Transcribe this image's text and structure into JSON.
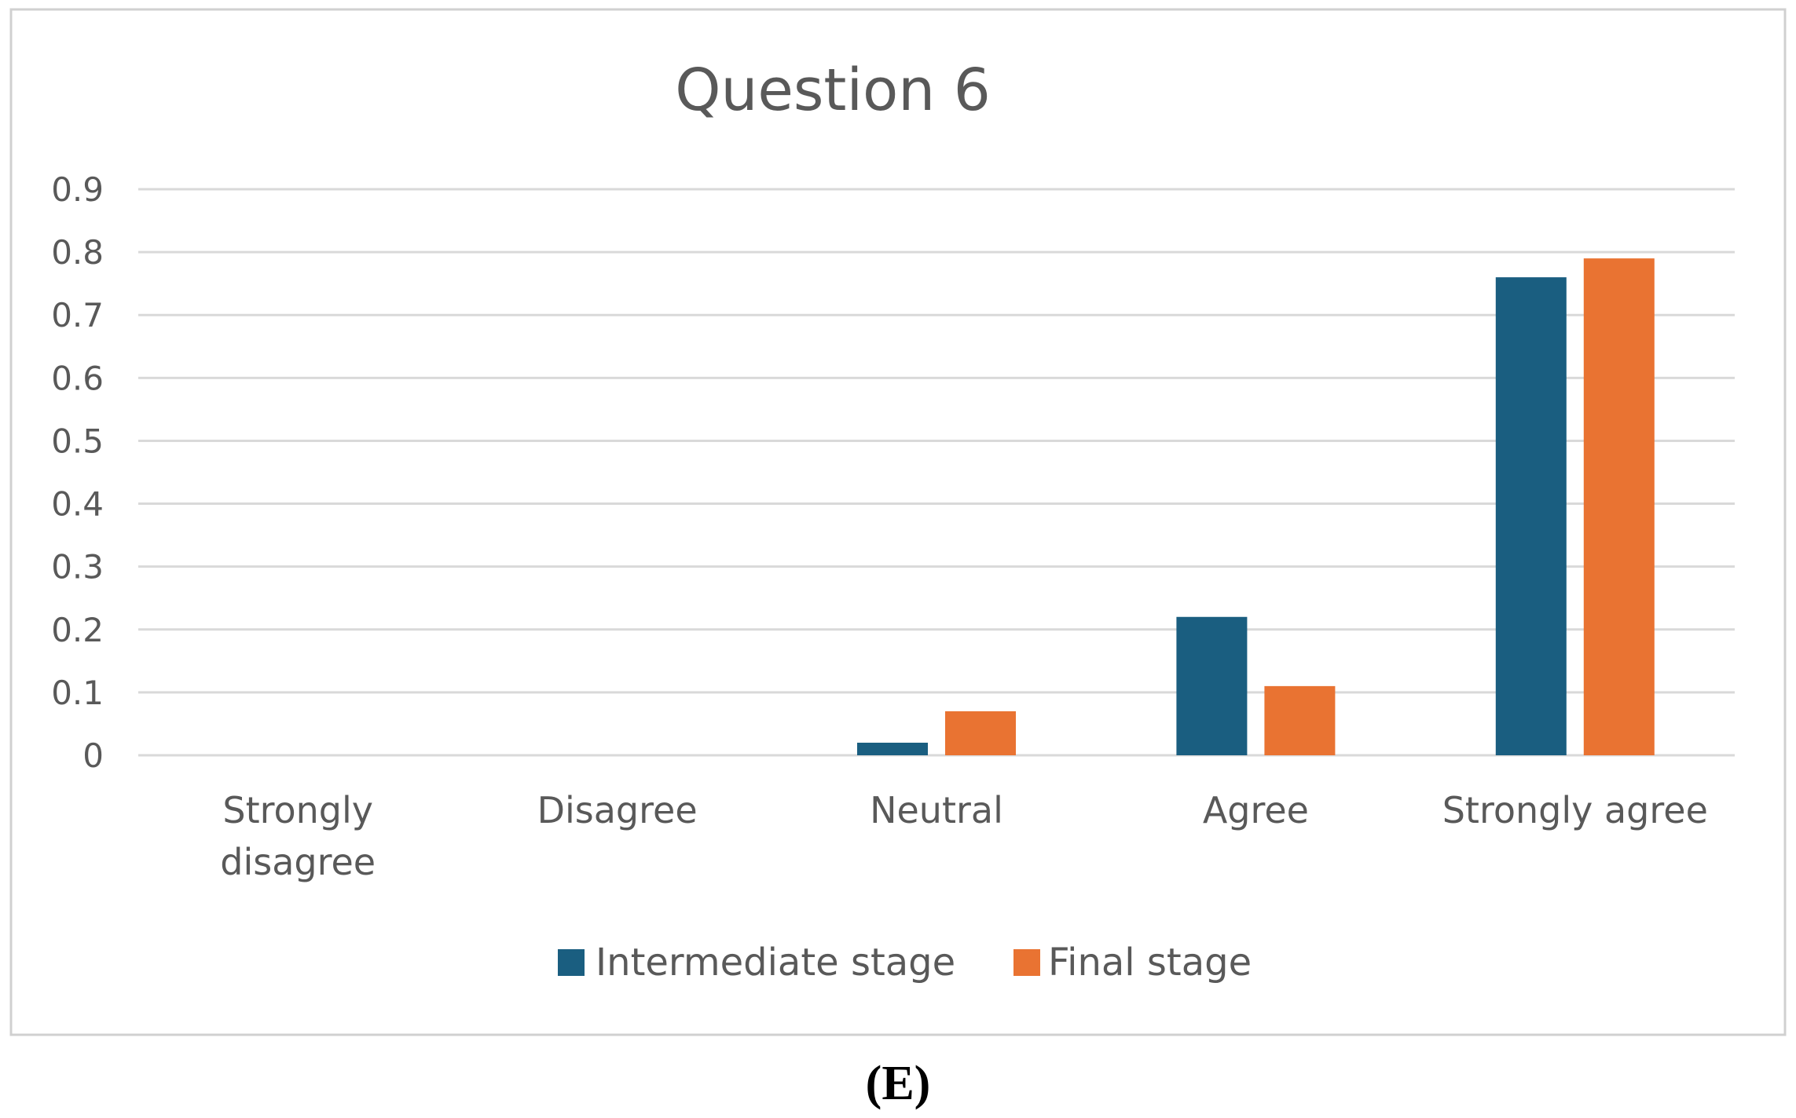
{
  "figure": {
    "caption": "(E)"
  },
  "colors": {
    "intermediate": "#1a5e80",
    "final": "#e97332",
    "grid": "#d9d9d9",
    "frame": "#d0d0d0",
    "text": "#595959"
  },
  "chart_data": {
    "type": "bar",
    "title": "Question 6",
    "xlabel": "",
    "ylabel": "",
    "categories": [
      [
        "Strongly",
        "disagree"
      ],
      [
        "Disagree"
      ],
      [
        "Neutral"
      ],
      [
        "Agree"
      ],
      [
        "Strongly agree"
      ]
    ],
    "series": [
      {
        "name": "Intermediate stage",
        "color": "#1a5e80",
        "values": [
          0,
          0,
          0.02,
          0.22,
          0.76
        ]
      },
      {
        "name": "Final stage",
        "color": "#e97332",
        "values": [
          0,
          0,
          0.07,
          0.11,
          0.79
        ]
      }
    ],
    "yticks": [
      "0",
      "0.1",
      "0.2",
      "0.3",
      "0.4",
      "0.5",
      "0.6",
      "0.7",
      "0.8",
      "0.9"
    ],
    "ylim": [
      0,
      0.9
    ],
    "grid": true,
    "legend_position": "bottom"
  }
}
